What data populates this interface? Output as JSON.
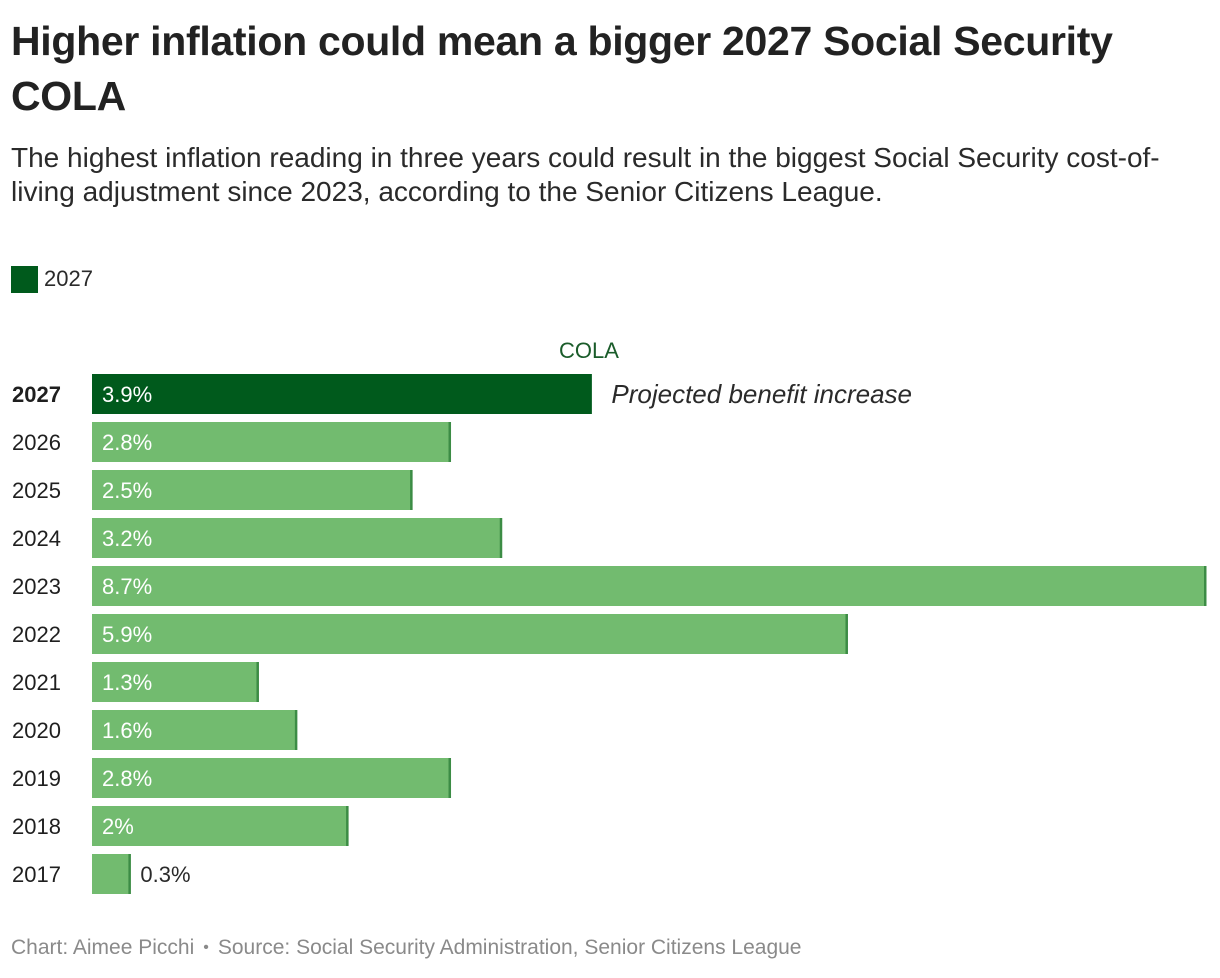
{
  "header": {
    "title": "Higher inflation could mean a bigger 2027 Social Security COLA",
    "subtitle": "The highest inflation reading in three years could result in the biggest Social Security cost-of-living adjustment since 2023, according to the Senior Citizens League."
  },
  "legend": {
    "label": "2027",
    "color": "#005a1c"
  },
  "footer": {
    "credit": "Chart: Aimee Picchi",
    "separator": "•",
    "source": "Source: Social Security Administration, Senior Citizens League"
  },
  "colors": {
    "highlight": "#005a1c",
    "default": "#72bb6f",
    "bar_end_line": "#3c8c45",
    "label_inside": "#ffffff",
    "label_outside": "#2a2a2a"
  },
  "chart_data": {
    "type": "bar",
    "orientation": "horizontal",
    "column_header": "COLA",
    "xlim": [
      0,
      8.7
    ],
    "highlight_category": "2027",
    "annotation": {
      "category": "2027",
      "text": "Projected benefit increase"
    },
    "categories": [
      "2027",
      "2026",
      "2025",
      "2024",
      "2023",
      "2022",
      "2021",
      "2020",
      "2019",
      "2018",
      "2017"
    ],
    "values": [
      3.9,
      2.8,
      2.5,
      3.2,
      8.7,
      5.9,
      1.3,
      1.6,
      2.8,
      2,
      0.3
    ],
    "value_labels": [
      "3.9%",
      "2.8%",
      "2.5%",
      "3.2%",
      "8.7%",
      "5.9%",
      "1.3%",
      "1.6%",
      "2.8%",
      "2%",
      "0.3%"
    ],
    "legend_placement": "top-left",
    "grid": false
  }
}
